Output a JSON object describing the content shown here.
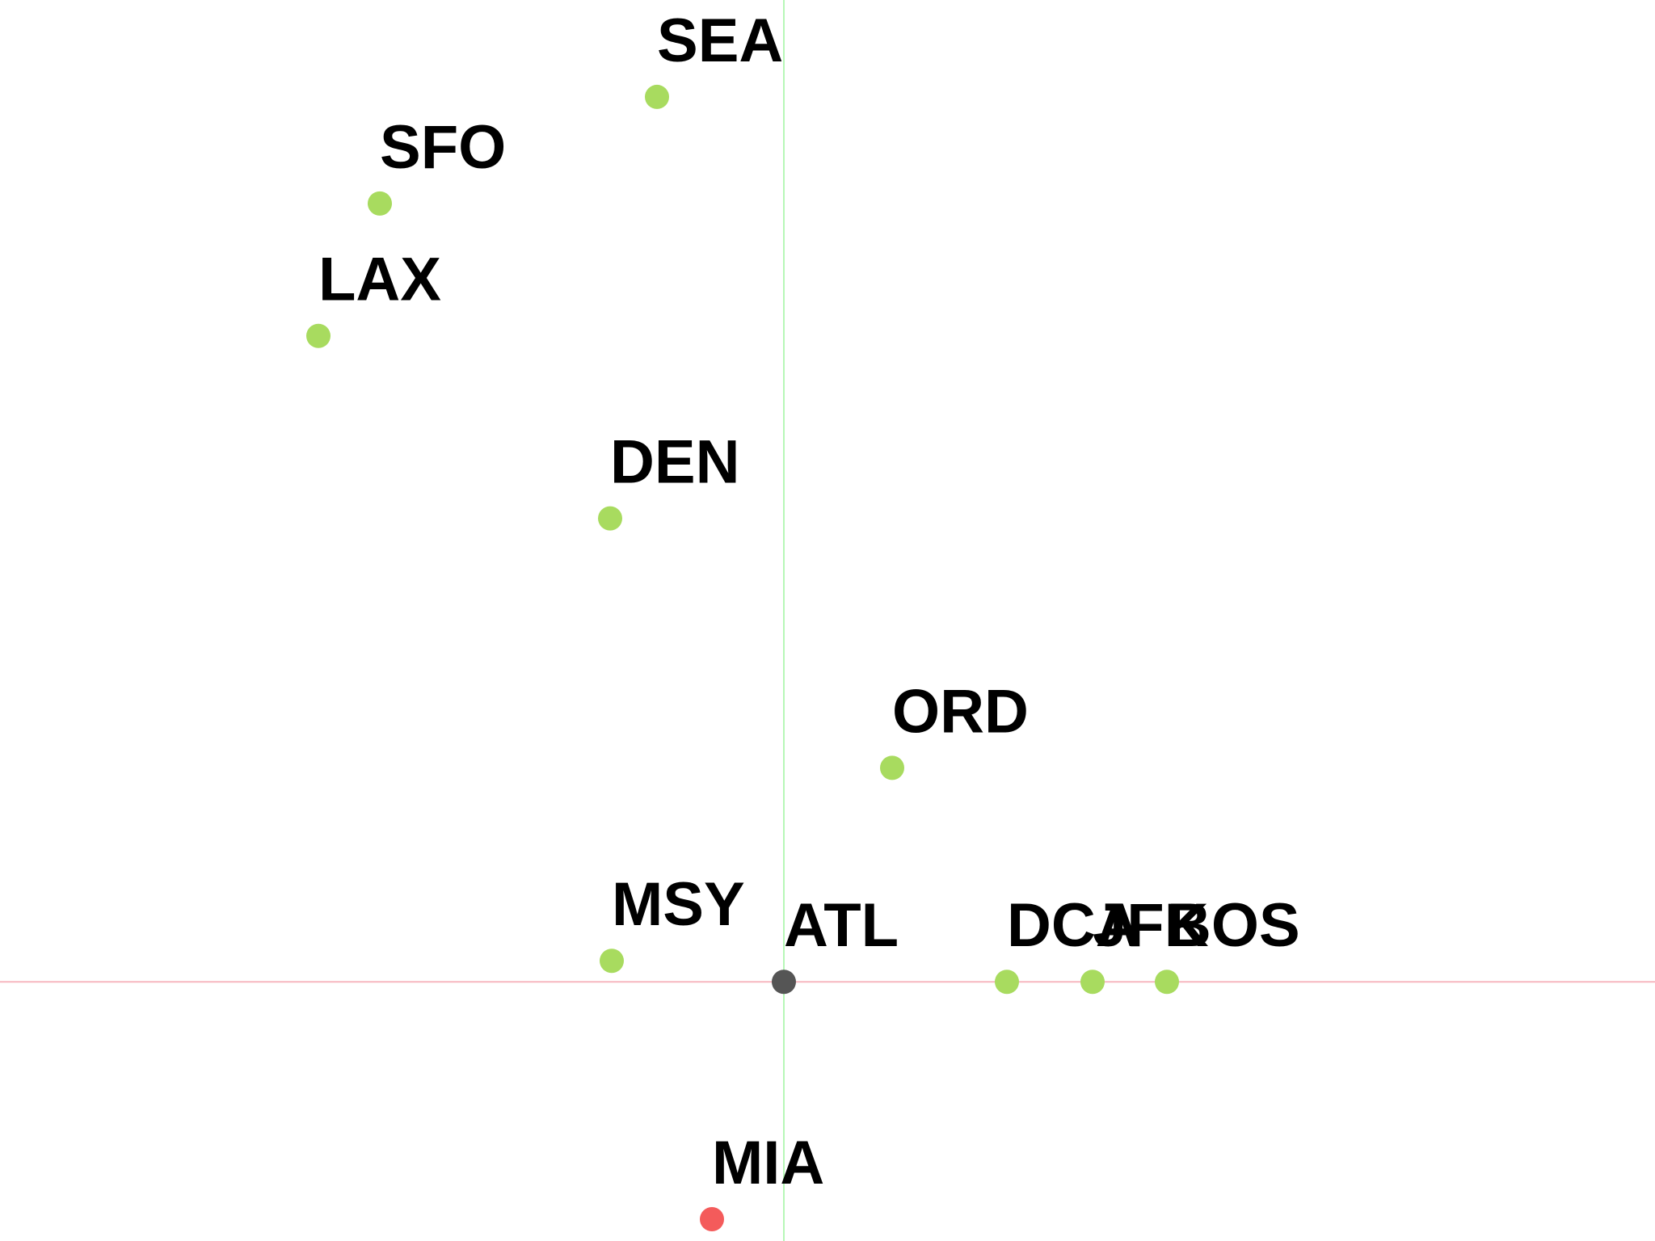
{
  "chart_data": {
    "type": "scatter",
    "title": "",
    "xlabel": "",
    "ylabel": "",
    "xlim": [
      -970,
      1078
    ],
    "ylim": [
      -321,
      1216
    ],
    "grid": false,
    "legend": "none",
    "axis_lines": {
      "x0_color": "#b7f7b7",
      "y0_color": "#f7b7bf"
    },
    "colors": {
      "default": "#a8db5f",
      "origin": "#555555",
      "highlight": "#f45b5b"
    },
    "points": [
      {
        "label": "SEA",
        "x": -157,
        "y": 1096,
        "role": "default"
      },
      {
        "label": "SFO",
        "x": -500,
        "y": 964,
        "role": "default"
      },
      {
        "label": "LAX",
        "x": -576,
        "y": 800,
        "role": "default"
      },
      {
        "label": "DEN",
        "x": -215,
        "y": 574,
        "role": "default"
      },
      {
        "label": "ORD",
        "x": 134,
        "y": 265,
        "role": "default"
      },
      {
        "label": "MSY",
        "x": -213,
        "y": 26,
        "role": "default"
      },
      {
        "label": "ATL",
        "x": 0,
        "y": 0,
        "role": "origin"
      },
      {
        "label": "DCA",
        "x": 276,
        "y": 0,
        "role": "default"
      },
      {
        "label": "JFK",
        "x": 382,
        "y": 0,
        "role": "default"
      },
      {
        "label": "BOS",
        "x": 474,
        "y": 0,
        "role": "default"
      },
      {
        "label": "MIA",
        "x": -89,
        "y": -294,
        "role": "highlight"
      }
    ]
  }
}
